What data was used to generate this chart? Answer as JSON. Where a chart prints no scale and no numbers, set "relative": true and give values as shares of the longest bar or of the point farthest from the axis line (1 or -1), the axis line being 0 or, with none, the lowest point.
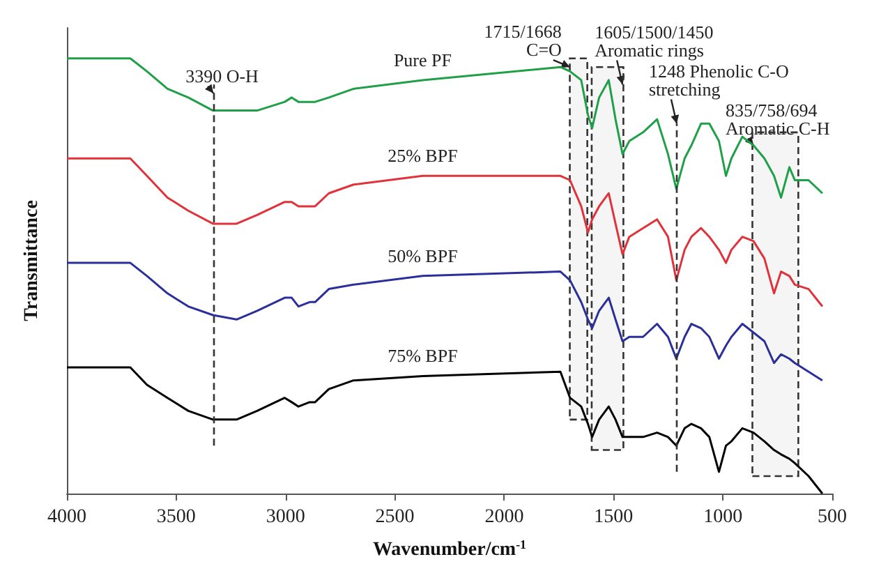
{
  "chart_data": {
    "type": "line",
    "relative": true,
    "xlabel": "Wavenumber/cm$^{-1}$",
    "ylabel": "Transmittance",
    "xlim": [
      4000,
      500
    ],
    "xticks": [
      4000,
      3500,
      3000,
      2500,
      2000,
      1500,
      1000,
      500
    ],
    "x": [
      4000,
      3710,
      3634,
      3540,
      3445,
      3332,
      3224,
      3130,
      3004,
      2972,
      2941,
      2890,
      2865,
      2802,
      2689,
      2373,
      1743,
      1699,
      1648,
      1617,
      1598,
      1566,
      1522,
      1491,
      1459,
      1428,
      1365,
      1301,
      1251,
      1213,
      1175,
      1144,
      1100,
      1062,
      1018,
      986,
      961,
      911,
      860,
      810,
      766,
      734,
      696,
      671,
      608,
      545
    ],
    "series": [
      {
        "name": "Pure PF",
        "color": "#1fa048",
        "values": [
          1.0,
          1.0,
          0.97,
          0.93,
          0.91,
          0.88,
          0.88,
          0.88,
          0.9,
          0.91,
          0.9,
          0.9,
          0.9,
          0.91,
          0.93,
          0.95,
          0.98,
          0.97,
          0.95,
          0.87,
          0.84,
          0.91,
          0.95,
          0.86,
          0.78,
          0.81,
          0.83,
          0.86,
          0.78,
          0.7,
          0.77,
          0.8,
          0.85,
          0.85,
          0.81,
          0.73,
          0.77,
          0.82,
          0.8,
          0.77,
          0.73,
          0.68,
          0.75,
          0.72,
          0.72,
          0.69
        ]
      },
      {
        "name": "25% BPF",
        "color": "#e0323a",
        "values": [
          0.77,
          0.77,
          0.73,
          0.68,
          0.65,
          0.62,
          0.62,
          0.64,
          0.67,
          0.67,
          0.66,
          0.66,
          0.66,
          0.69,
          0.71,
          0.73,
          0.73,
          0.72,
          0.66,
          0.6,
          0.63,
          0.66,
          0.69,
          0.62,
          0.55,
          0.59,
          0.61,
          0.63,
          0.59,
          0.49,
          0.56,
          0.59,
          0.61,
          0.59,
          0.56,
          0.53,
          0.56,
          0.59,
          0.58,
          0.54,
          0.46,
          0.51,
          0.5,
          0.48,
          0.47,
          0.43
        ]
      },
      {
        "name": "50% BPF",
        "color": "#2b2f9a",
        "values": [
          0.53,
          0.53,
          0.5,
          0.46,
          0.43,
          0.41,
          0.4,
          0.42,
          0.45,
          0.45,
          0.43,
          0.44,
          0.44,
          0.47,
          0.48,
          0.5,
          0.51,
          0.49,
          0.44,
          0.4,
          0.38,
          0.42,
          0.45,
          0.4,
          0.35,
          0.36,
          0.36,
          0.39,
          0.36,
          0.31,
          0.36,
          0.39,
          0.38,
          0.36,
          0.31,
          0.34,
          0.36,
          0.39,
          0.37,
          0.35,
          0.3,
          0.32,
          0.31,
          0.3,
          0.28,
          0.26
        ]
      },
      {
        "name": "75% BPF",
        "color": "#000000",
        "values": [
          0.29,
          0.29,
          0.25,
          0.22,
          0.19,
          0.17,
          0.17,
          0.19,
          0.22,
          0.21,
          0.2,
          0.21,
          0.21,
          0.24,
          0.26,
          0.27,
          0.28,
          0.22,
          0.2,
          0.16,
          0.13,
          0.17,
          0.2,
          0.17,
          0.13,
          0.13,
          0.13,
          0.14,
          0.13,
          0.11,
          0.15,
          0.16,
          0.15,
          0.13,
          0.05,
          0.11,
          0.12,
          0.15,
          0.14,
          0.12,
          0.1,
          0.09,
          0.08,
          0.07,
          0.04,
          0.0
        ]
      }
    ],
    "ref_lines": [
      {
        "axis": "x",
        "value": 3330,
        "line_style": "dashed"
      },
      {
        "axis": "x",
        "value": 1211,
        "line_style": "dashed"
      }
    ],
    "bands": [
      {
        "axis": "x",
        "from": 1700,
        "to": 1620
      },
      {
        "axis": "x",
        "from": 1600,
        "to": 1455
      },
      {
        "axis": "x",
        "from": 865,
        "to": 655
      }
    ],
    "annotations": [
      {
        "text": "3390 O-H",
        "x": 3330,
        "y": 0.92
      },
      {
        "text": "1715/1668\nC=O",
        "x": 1699,
        "y": 0.98
      },
      {
        "text": "1605/1500/1450\nAromatic rings",
        "x": 1459,
        "y": 0.94
      },
      {
        "text": "1248 Phenolic C-O\nstretching",
        "x": 1211,
        "y": 0.85
      },
      {
        "text": "835/758/694\nAromatic C-H",
        "x": 860,
        "y": 0.8
      }
    ]
  }
}
